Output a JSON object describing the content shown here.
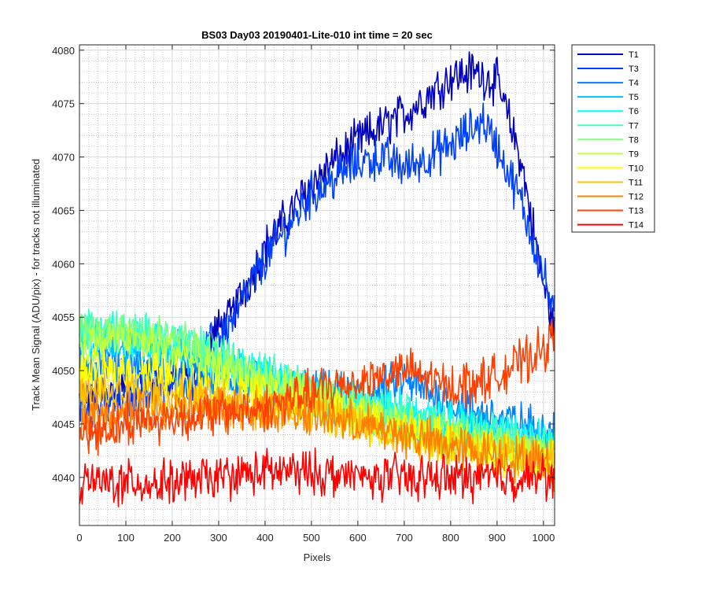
{
  "chart_data": {
    "type": "line",
    "title": "BS03 Day03 20190401-Lite-010 int time = 20 sec",
    "xlabel": "Pixels",
    "ylabel": "Track Mean Signal (ADU/pix) - for tracks not illuminated",
    "xlim": [
      0,
      1024
    ],
    "ylim": [
      4035.5,
      4080.5
    ],
    "xticks": [
      0,
      100,
      200,
      300,
      400,
      500,
      600,
      700,
      800,
      900,
      1000
    ],
    "yticks": [
      4040,
      4045,
      4050,
      4055,
      4060,
      4065,
      4070,
      4075,
      4080
    ],
    "grid": true,
    "minor_grid": true,
    "legend_position": "outside-top-right",
    "noise_note_removed": true,
    "series": [
      {
        "name": "T1",
        "color": "#0000bf",
        "x": [
          0,
          50,
          100,
          150,
          200,
          250,
          290,
          320,
          400,
          500,
          600,
          700,
          800,
          850,
          900,
          950,
          1000,
          1024
        ],
        "values": [
          4047.5,
          4047.5,
          4048.5,
          4049,
          4049,
          4050,
          4053.5,
          4054.5,
          4061.5,
          4067.5,
          4071.5,
          4074,
          4077.5,
          4078,
          4077,
          4070,
          4058,
          4054
        ]
      },
      {
        "name": "T3",
        "color": "#0040ff",
        "x": [
          0,
          50,
          100,
          150,
          200,
          250,
          290,
          320,
          400,
          500,
          600,
          650,
          700,
          800,
          870,
          900,
          950,
          1000,
          1024
        ],
        "values": [
          4046.5,
          4047,
          4047,
          4048,
          4048.5,
          4049.5,
          4053,
          4054,
          4060.5,
          4066.5,
          4069.5,
          4070,
          4069,
          4071,
          4073.5,
          4071,
          4066,
          4059,
          4055
        ]
      },
      {
        "name": "T4",
        "color": "#0080ff",
        "x": [
          0,
          100,
          200,
          300,
          400,
          500,
          600,
          700,
          800,
          900,
          1000,
          1024
        ],
        "values": [
          4051,
          4050.5,
          4050,
          4049,
          4048.5,
          4048,
          4047.5,
          4049,
          4047,
          4045.5,
          4044.5,
          4044
        ]
      },
      {
        "name": "T5",
        "color": "#00bfff",
        "x": [
          0,
          100,
          200,
          300,
          400,
          500,
          600,
          700,
          800,
          900,
          1000,
          1024
        ],
        "values": [
          4053,
          4052.5,
          4052,
          4050.5,
          4049,
          4047.5,
          4046.5,
          4045.5,
          4045,
          4044,
          4043.5,
          4043
        ]
      },
      {
        "name": "T6",
        "color": "#00ffff",
        "x": [
          0,
          100,
          200,
          300,
          400,
          500,
          600,
          700,
          800,
          900,
          1000,
          1024
        ],
        "values": [
          4053.5,
          4053,
          4052.5,
          4051,
          4049.5,
          4048,
          4047,
          4046,
          4045,
          4044.5,
          4043.5,
          4043
        ]
      },
      {
        "name": "T7",
        "color": "#40ffbf",
        "x": [
          0,
          100,
          200,
          300,
          400,
          500,
          600,
          700,
          800,
          900,
          1000,
          1024
        ],
        "values": [
          4054,
          4053.5,
          4053,
          4051.5,
          4050,
          4048,
          4047,
          4045.5,
          4044.5,
          4044,
          4043,
          4042.5
        ]
      },
      {
        "name": "T8",
        "color": "#80ff80",
        "x": [
          0,
          100,
          200,
          300,
          400,
          500,
          600,
          700,
          800,
          900,
          1000,
          1024
        ],
        "values": [
          4053.5,
          4054,
          4053,
          4051,
          4049.5,
          4047.5,
          4046,
          4045,
          4044,
          4043,
          4042,
          4041.5
        ]
      },
      {
        "name": "T9",
        "color": "#bfff40",
        "x": [
          0,
          100,
          200,
          300,
          400,
          500,
          600,
          700,
          800,
          900,
          1000,
          1024
        ],
        "values": [
          4052.5,
          4053,
          4052,
          4050,
          4049,
          4047.5,
          4046,
          4044.5,
          4043.5,
          4042.5,
          4042,
          4041.5
        ]
      },
      {
        "name": "T10",
        "color": "#ffff00",
        "x": [
          0,
          100,
          200,
          300,
          400,
          500,
          600,
          700,
          800,
          900,
          1000,
          1024
        ],
        "values": [
          4049.5,
          4050,
          4049.5,
          4048.5,
          4047.5,
          4046.5,
          4045.5,
          4044.5,
          4043.5,
          4042.5,
          4042,
          4041.5
        ]
      },
      {
        "name": "T11",
        "color": "#ffbf00",
        "x": [
          0,
          100,
          200,
          300,
          400,
          500,
          600,
          700,
          800,
          900,
          1000,
          1024
        ],
        "values": [
          4047.5,
          4048,
          4047.5,
          4047,
          4046.5,
          4046,
          4045,
          4044,
          4043,
          4042.5,
          4042,
          4041.5
        ]
      },
      {
        "name": "T12",
        "color": "#ff8000",
        "x": [
          0,
          100,
          200,
          300,
          400,
          500,
          600,
          700,
          800,
          900,
          1000,
          1024
        ],
        "values": [
          4045.5,
          4046,
          4046,
          4046.5,
          4046.5,
          4046,
          4045,
          4044,
          4043,
          4042,
          4041.5,
          4041
        ]
      },
      {
        "name": "T13",
        "color": "#ff4000",
        "x": [
          0,
          100,
          200,
          300,
          400,
          500,
          600,
          700,
          800,
          900,
          1000,
          1024
        ],
        "values": [
          4044,
          4045,
          4045.5,
          4046,
          4046.5,
          4048,
          4049,
          4050,
          4048.5,
          4049.5,
          4052,
          4053
        ]
      },
      {
        "name": "T14",
        "color": "#ff0000",
        "x": [
          0,
          100,
          200,
          300,
          400,
          500,
          600,
          700,
          800,
          900,
          1000,
          1024
        ],
        "values": [
          4039.5,
          4039.5,
          4039.5,
          4040,
          4040.5,
          4040.5,
          4040,
          4040,
          4040,
          4040,
          4040,
          4040
        ]
      }
    ]
  }
}
